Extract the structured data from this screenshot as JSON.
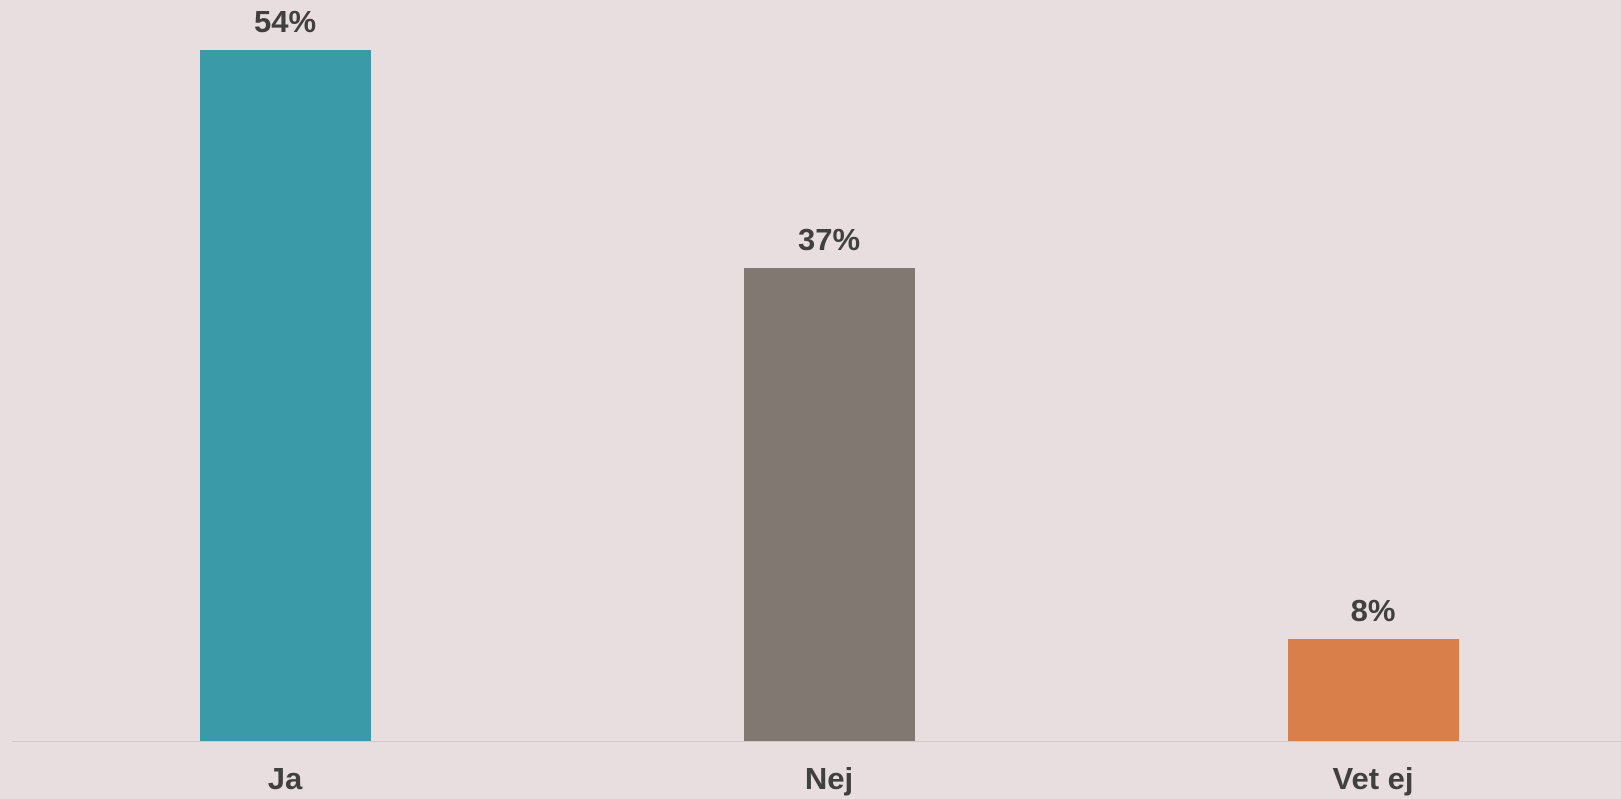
{
  "chart_data": {
    "type": "bar",
    "categories": [
      "Ja",
      "Nej",
      "Vet ej"
    ],
    "values": [
      54,
      37,
      8
    ],
    "value_labels": [
      "54%",
      "37%",
      "8%"
    ],
    "colors": [
      "#3a9aa8",
      "#817872",
      "#d97f4a"
    ],
    "ylim": [
      0,
      54
    ],
    "grid": false,
    "legend": "none"
  }
}
